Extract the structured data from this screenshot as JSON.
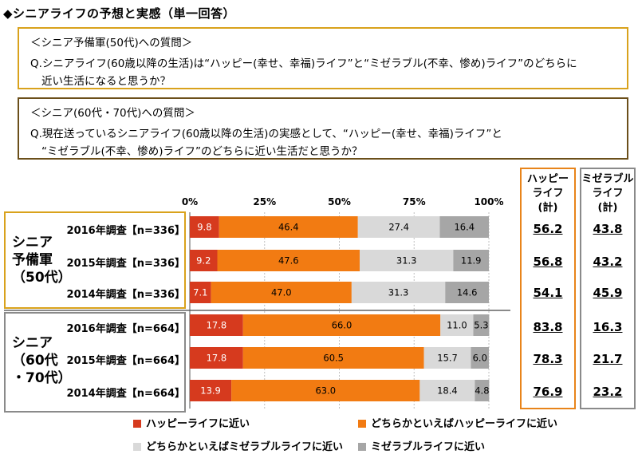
{
  "title": "◆シニアライフの予想と実感（単一回答）",
  "question1": {
    "heading": "＜シニア予備軍(50代)への質問＞",
    "line1": "Q.シニアライフ(60歳以降の生活)は“ハッピー(幸せ、幸福)ライフ”と“ミゼラブル(不幸、惨め)ライフ”のどちらに",
    "line2": "近い生活になると思うか？"
  },
  "question2": {
    "heading": "＜シニア(60代・70代)への質問＞",
    "line1": "Q.現在送っているシニアライフ(60歳以降の生活)の実感として、“ハッピー(幸せ、幸福)ライフ”と",
    "line2": "“ミゼラブル(不幸、惨め)ライフ”のどちらに近い生活だと思うか？"
  },
  "groups": [
    {
      "lines": [
        "シニア",
        "予備軍",
        "（50代）"
      ]
    },
    {
      "lines": [
        "シニア",
        "（60代",
        "・70代）"
      ]
    }
  ],
  "columns": {
    "happy_header": [
      "ハッピー",
      "ライフ",
      "(計)"
    ],
    "miserable_header": [
      "ミゼラブル",
      "ライフ",
      "(計)"
    ]
  },
  "colors": {
    "happy": "#d63a1e",
    "rather_happy": "#f27b12",
    "rather_miserable": "#d9d9d9",
    "miserable": "#a6a6a6"
  },
  "chart_data": {
    "type": "bar",
    "orientation": "horizontal",
    "stacked": true,
    "xlim": [
      0,
      100
    ],
    "ticks": [
      "0%",
      "25%",
      "50%",
      "75%",
      "100%"
    ],
    "categories": [
      "2016年調査【n=336】",
      "2015年調査【n=336】",
      "2014年調査【n=336】",
      "2016年調査【n=664】",
      "2015年調査【n=664】",
      "2014年調査【n=664】"
    ],
    "series": [
      {
        "name": "ハッピーライフに近い",
        "values": [
          9.8,
          9.2,
          7.1,
          17.8,
          17.8,
          13.9
        ]
      },
      {
        "name": "どちらかといえばハッピーライフに近い",
        "values": [
          46.4,
          47.6,
          47.0,
          66.0,
          60.5,
          63.0
        ]
      },
      {
        "name": "どちらかといえばミゼラブルライフに近い",
        "values": [
          27.4,
          31.3,
          31.3,
          11.0,
          15.7,
          18.4
        ]
      },
      {
        "name": "ミゼラブルライフに近い",
        "values": [
          16.4,
          11.9,
          14.6,
          5.3,
          6.0,
          4.8
        ]
      }
    ],
    "happy_total": [
      "56.2",
      "56.8",
      "54.1",
      "83.8",
      "78.3",
      "76.9"
    ],
    "miserable_total": [
      "43.8",
      "43.2",
      "45.9",
      "16.3",
      "21.7",
      "23.2"
    ],
    "legend_position": "bottom"
  }
}
